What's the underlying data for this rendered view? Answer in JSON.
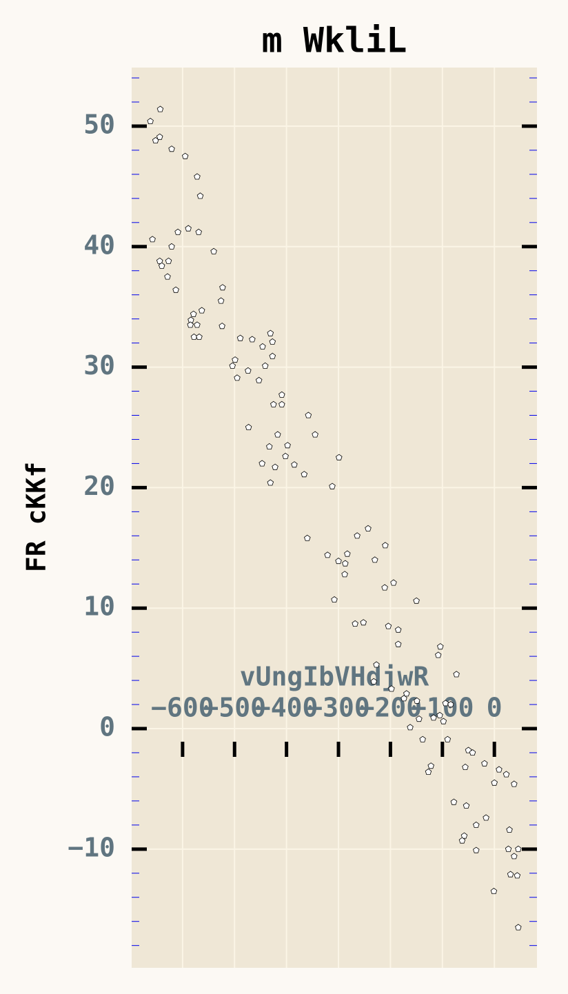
{
  "chart_data": {
    "type": "scatter",
    "title": "m WkliL",
    "x_label": "vUngIbVHdjwR",
    "y_label": "FR cKKf",
    "xlim": [
      -698,
      82
    ],
    "ylim": [
      -19.85,
      54.86
    ],
    "xticks": [
      {
        "value": -600,
        "label": "−600"
      },
      {
        "value": -500,
        "label": "−500"
      },
      {
        "value": -400,
        "label": "−400"
      },
      {
        "value": -300,
        "label": "−300"
      },
      {
        "value": -200,
        "label": "−200"
      },
      {
        "value": -100,
        "label": "−100"
      },
      0
    ],
    "yticks": [
      {
        "value": -10,
        "label": "−10"
      },
      0,
      10,
      20,
      30,
      40,
      50
    ],
    "yticks_minor": [
      -18,
      -16,
      -14,
      -12,
      -8,
      -6,
      -4,
      -2,
      2,
      4,
      6,
      8,
      12,
      14,
      16,
      18,
      22,
      24,
      26,
      28,
      32,
      34,
      36,
      38,
      42,
      44,
      46,
      48,
      52,
      54
    ],
    "grid": true,
    "marker": "pentagon",
    "color": "#ffffff",
    "edge_color": "#000000",
    "x": [
      -662,
      -643,
      -652,
      -644,
      -621,
      -595,
      -572,
      -566,
      -658,
      -609,
      -589,
      -569,
      -621,
      -644,
      -627,
      -640,
      -629,
      -540,
      -613,
      -523,
      -526,
      -563,
      -579,
      -584,
      -585,
      -572,
      -524,
      -578,
      -568,
      -489,
      -466,
      -431,
      -427,
      -446,
      -427,
      -499,
      -504,
      -441,
      -474,
      -495,
      -453,
      -409,
      -425,
      -409,
      -358,
      -345,
      -417,
      -473,
      -398,
      -433,
      -402,
      -299,
      -447,
      -385,
      -422,
      -366,
      -431,
      -312,
      -360,
      -243,
      -264,
      -210,
      -321,
      -283,
      -300,
      -287,
      -230,
      -288,
      -194,
      -211,
      -308,
      -150,
      -268,
      -252,
      -204,
      -185,
      -185,
      -104,
      -108,
      -227,
      -73,
      -232,
      -198,
      -169,
      -174,
      -149,
      -94,
      -84,
      -105,
      -117,
      -145,
      -98,
      -162,
      -138,
      -90,
      -122,
      -127,
      -50,
      -42,
      -19,
      -56,
      9,
      23,
      0,
      38,
      -78,
      -54,
      -16,
      -35,
      29,
      -58,
      -62,
      -35,
      27,
      46,
      38,
      31,
      44,
      -1,
      46
    ],
    "values": [
      50.4,
      51.4,
      48.8,
      49.1,
      48.1,
      47.5,
      45.8,
      44.2,
      40.6,
      41.2,
      41.5,
      41.2,
      40.0,
      38.8,
      38.8,
      38.4,
      37.5,
      39.6,
      36.4,
      36.6,
      35.5,
      34.7,
      34.4,
      33.9,
      33.5,
      33.5,
      33.4,
      32.5,
      32.5,
      32.4,
      32.3,
      32.8,
      32.1,
      31.7,
      30.9,
      30.6,
      30.1,
      30.1,
      29.7,
      29.1,
      28.9,
      27.7,
      26.9,
      26.9,
      26.0,
      24.4,
      24.4,
      25.0,
      23.5,
      23.4,
      22.6,
      22.5,
      22.0,
      21.9,
      21.7,
      21.1,
      20.4,
      20.1,
      15.8,
      16.6,
      16.0,
      15.2,
      14.4,
      14.5,
      13.9,
      13.7,
      14.0,
      12.8,
      12.1,
      11.7,
      10.7,
      10.6,
      8.7,
      8.8,
      8.5,
      8.2,
      7.0,
      6.8,
      6.1,
      5.3,
      4.5,
      3.9,
      3.3,
      2.9,
      2.5,
      2.3,
      2.1,
      2.0,
      1.1,
      0.9,
      0.8,
      0.6,
      0.1,
      -0.9,
      -0.9,
      -3.1,
      -3.6,
      -1.8,
      -2.0,
      -2.9,
      -3.2,
      -3.4,
      -3.8,
      -4.5,
      -4.6,
      -6.1,
      -6.4,
      -7.4,
      -8.0,
      -8.4,
      -8.9,
      -9.3,
      -10.1,
      -10.0,
      -10.0,
      -10.6,
      -12.1,
      -12.2,
      -13.5,
      -16.5
    ]
  }
}
